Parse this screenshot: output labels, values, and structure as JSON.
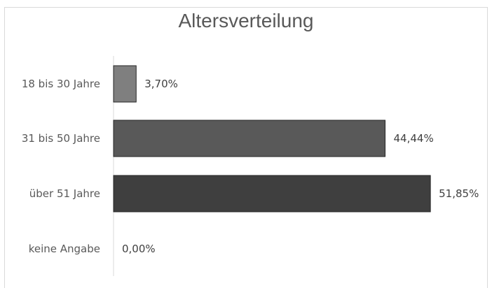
{
  "chart_data": {
    "type": "bar",
    "orientation": "horizontal",
    "title": "Altersverteilung",
    "categories": [
      "18 bis 30 Jahre",
      "31 bis 50 Jahre",
      "über 51 Jahre",
      "keine Angabe"
    ],
    "values": [
      3.7,
      44.44,
      51.85,
      0.0
    ],
    "value_labels": [
      "3,70%",
      "44,44%",
      "51,85%",
      "0,00%"
    ],
    "colors": [
      "#7f7f7f",
      "#595959",
      "#3f3f3f",
      "#3f3f3f"
    ],
    "xlim": [
      0,
      60
    ],
    "grid": false,
    "legend": "none"
  }
}
